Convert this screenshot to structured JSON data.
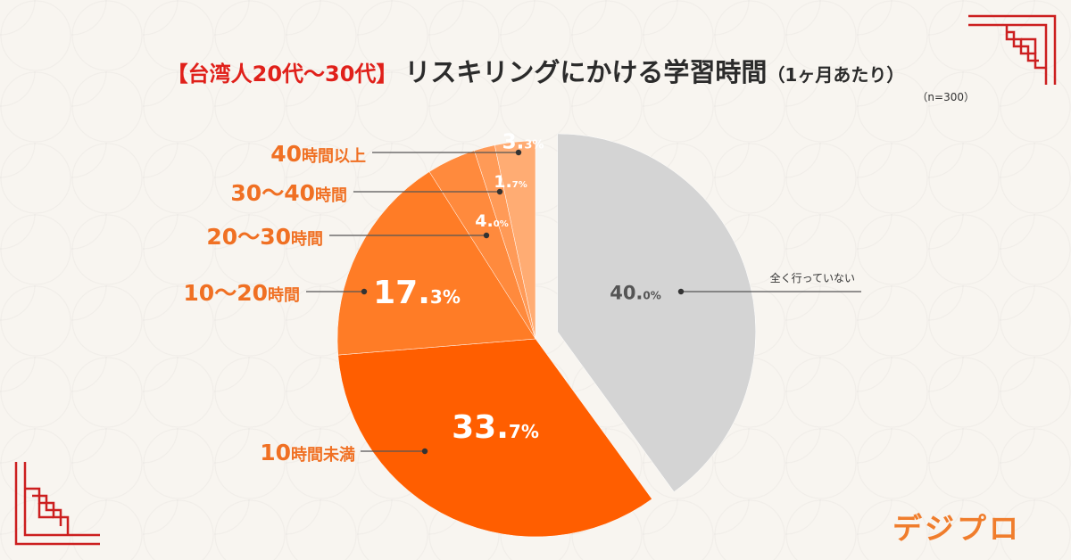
{
  "title": {
    "prefix": "【台湾人20代～30代】",
    "main": "リスキリングにかける学習時間",
    "unit": "（1ヶ月あたり）",
    "sample": "（n=300）"
  },
  "brand": {
    "logo_text": "デジプロ"
  },
  "colors": {
    "title_accent": "#e0201a",
    "label_orange": "#f07023",
    "gray_slice": "#d4d4d4",
    "corner_red": "#cc1f1f"
  },
  "chart_data": {
    "type": "pie",
    "title": "【台湾人20代～30代】リスキリングにかける学習時間（1ヶ月あたり）",
    "n": 300,
    "start": "12 o'clock, clockwise",
    "slices": [
      {
        "label": "全く行っていない",
        "value": 40.0,
        "display_int": "40.",
        "display_dec": "0%",
        "color": "#d4d4d4",
        "exploded": true
      },
      {
        "label": "10時間未満",
        "value": 33.7,
        "display_int": "33.",
        "display_dec": "7%",
        "color": "#ff5e00"
      },
      {
        "label": "10～20時間",
        "value": 17.3,
        "display_int": "17.",
        "display_dec": "3%",
        "color": "#ff7c26"
      },
      {
        "label": "20～30時間",
        "value": 4.0,
        "display_int": "4.",
        "display_dec": "0%",
        "color": "#ff8a3d"
      },
      {
        "label": "30～40時間",
        "value": 1.7,
        "display_int": "1.",
        "display_dec": "7%",
        "color": "#ff9a57"
      },
      {
        "label": "40時間以上",
        "value": 3.3,
        "display_int": "3.",
        "display_dec": "3%",
        "color": "#ffac73"
      }
    ]
  }
}
